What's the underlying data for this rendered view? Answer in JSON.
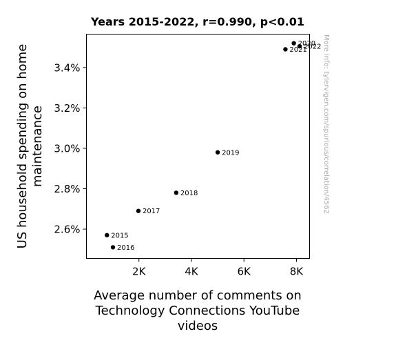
{
  "chart_data": {
    "type": "scatter",
    "title": "Years 2015-2022, r=0.990, p<0.01",
    "xlabel": "Average number of comments on Technology Connections YouTube videos",
    "ylabel": "US household spending on home maintenance",
    "xlim": [
      0,
      8500
    ],
    "ylim": [
      2.455,
      3.565
    ],
    "x_ticks": [
      {
        "value": 2000,
        "label": "2K"
      },
      {
        "value": 4000,
        "label": "4K"
      },
      {
        "value": 6000,
        "label": "6K"
      },
      {
        "value": 8000,
        "label": "8K"
      }
    ],
    "y_ticks": [
      {
        "value": 2.6,
        "label": "2.6%"
      },
      {
        "value": 2.8,
        "label": "2.8%"
      },
      {
        "value": 3.0,
        "label": "3.0%"
      },
      {
        "value": 3.2,
        "label": "3.2%"
      },
      {
        "value": 3.4,
        "label": "3.4%"
      }
    ],
    "points": [
      {
        "label": "2015",
        "x": 780,
        "y": 2.57
      },
      {
        "label": "2016",
        "x": 1010,
        "y": 2.51
      },
      {
        "label": "2017",
        "x": 1980,
        "y": 2.69
      },
      {
        "label": "2018",
        "x": 3420,
        "y": 2.78
      },
      {
        "label": "2019",
        "x": 5000,
        "y": 2.98
      },
      {
        "label": "2020",
        "x": 7900,
        "y": 3.52
      },
      {
        "label": "2021",
        "x": 7580,
        "y": 3.49
      },
      {
        "label": "2022",
        "x": 8120,
        "y": 3.505
      }
    ],
    "grid": false,
    "marker_color": "#000000"
  },
  "watermark": "More info: tylervigen.com/spurious/correlation/4562"
}
